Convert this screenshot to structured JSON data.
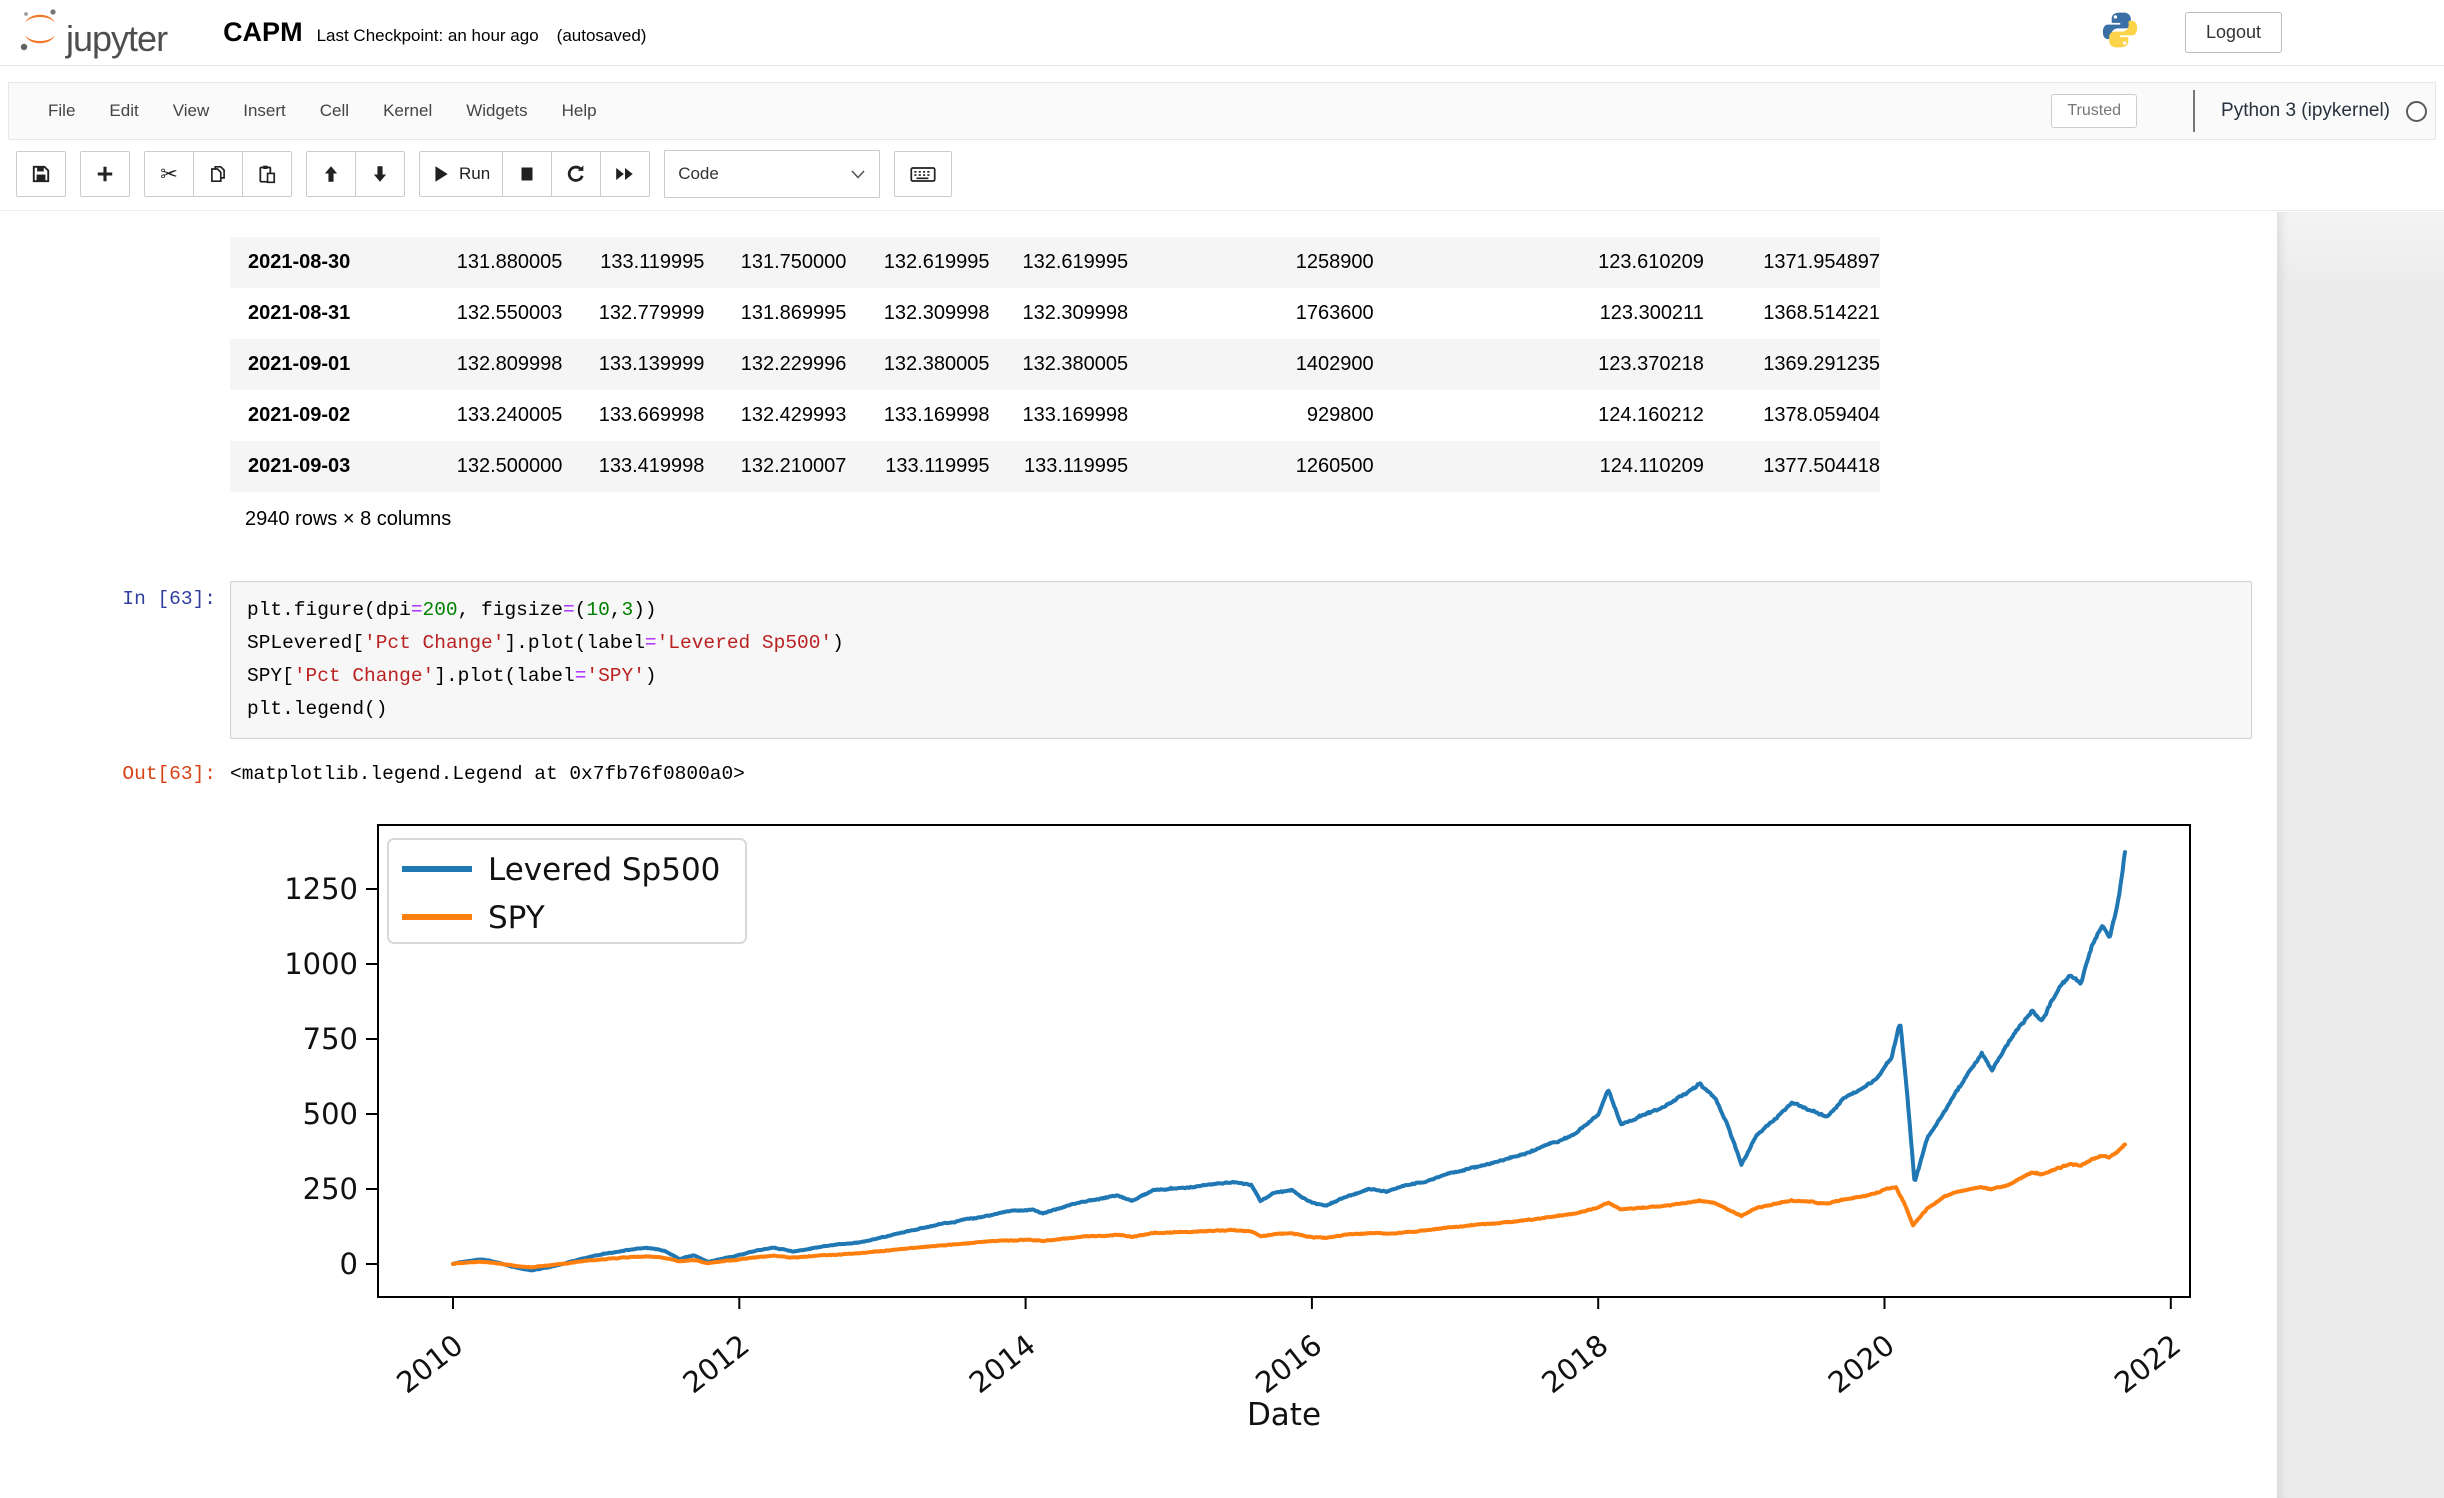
{
  "header": {
    "logo_text": "jupyter",
    "title": "CAPM",
    "subtitle": "Last Checkpoint: an hour ago",
    "autosaved": "(autosaved)",
    "logout_label": "Logout"
  },
  "menubar": {
    "items": [
      "File",
      "Edit",
      "View",
      "Insert",
      "Cell",
      "Kernel",
      "Widgets",
      "Help"
    ],
    "trusted_label": "Trusted",
    "kernel_name": "Python 3 (ipykernel)",
    "kernel_status": "idle"
  },
  "toolbar": {
    "run_label": "Run",
    "cell_type": "Code"
  },
  "dataframe": {
    "rows": [
      [
        "2021-08-30",
        "131.880005",
        "133.119995",
        "131.750000",
        "132.619995",
        "132.619995",
        "1258900",
        "123.610209",
        "1371.954897"
      ],
      [
        "2021-08-31",
        "132.550003",
        "132.779999",
        "131.869995",
        "132.309998",
        "132.309998",
        "1763600",
        "123.300211",
        "1368.514221"
      ],
      [
        "2021-09-01",
        "132.809998",
        "133.139999",
        "132.229996",
        "132.380005",
        "132.380005",
        "1402900",
        "123.370218",
        "1369.291235"
      ],
      [
        "2021-09-02",
        "133.240005",
        "133.669998",
        "132.429993",
        "133.169998",
        "133.169998",
        "929800",
        "124.160212",
        "1378.059404"
      ],
      [
        "2021-09-03",
        "132.500000",
        "133.419998",
        "132.210007",
        "133.119995",
        "133.119995",
        "1260500",
        "124.110209",
        "1377.504418"
      ]
    ],
    "footer": "2940 rows × 8 columns"
  },
  "cell": {
    "in_prompt": "In [63]:",
    "out_prompt": "Out[63]:",
    "out_text": "<matplotlib.legend.Legend at 0x7fb76f0800a0>",
    "code_lines": [
      [
        [
          "plt.figure(dpi",
          "p"
        ],
        [
          "=",
          "o"
        ],
        [
          "200",
          "n"
        ],
        [
          ", figsize",
          "p"
        ],
        [
          "=",
          "o"
        ],
        [
          "(",
          "p"
        ],
        [
          "10",
          "n"
        ],
        [
          ",",
          "p"
        ],
        [
          "3",
          "n"
        ],
        [
          "))",
          "p"
        ]
      ],
      [
        [
          "SPLevered[",
          "p"
        ],
        [
          "'Pct Change'",
          "s"
        ],
        [
          "].plot(label",
          "p"
        ],
        [
          "=",
          "o"
        ],
        [
          "'Levered Sp500'",
          "s"
        ],
        [
          ")",
          "p"
        ]
      ],
      [
        [
          "SPY[",
          "p"
        ],
        [
          "'Pct Change'",
          "s"
        ],
        [
          "].plot(label",
          "p"
        ],
        [
          "=",
          "o"
        ],
        [
          "'SPY'",
          "s"
        ],
        [
          ")",
          "p"
        ]
      ],
      [
        [
          "plt.legend()",
          "p"
        ]
      ]
    ]
  },
  "chart_data": {
    "type": "line",
    "xlabel": "Date",
    "ylabel": "",
    "x_ticks": [
      2010,
      2012,
      2014,
      2016,
      2018,
      2020,
      2022
    ],
    "y_ticks": [
      0,
      250,
      500,
      750,
      1000,
      1250
    ],
    "xlim": [
      2009.48,
      2022.13
    ],
    "ylim": [
      -63,
      1463
    ],
    "grid": false,
    "legend_position": "upper left",
    "series": [
      {
        "name": "Levered Sp500",
        "color": "#1f77b4",
        "points": [
          [
            2010.0,
            0
          ],
          [
            2010.1,
            10
          ],
          [
            2010.2,
            16
          ],
          [
            2010.3,
            6
          ],
          [
            2010.42,
            -10
          ],
          [
            2010.55,
            -22
          ],
          [
            2010.65,
            -12
          ],
          [
            2010.8,
            4
          ],
          [
            2010.92,
            20
          ],
          [
            2011.05,
            34
          ],
          [
            2011.2,
            46
          ],
          [
            2011.35,
            54
          ],
          [
            2011.48,
            44
          ],
          [
            2011.58,
            16
          ],
          [
            2011.68,
            28
          ],
          [
            2011.78,
            6
          ],
          [
            2011.9,
            20
          ],
          [
            2012.0,
            30
          ],
          [
            2012.12,
            44
          ],
          [
            2012.25,
            54
          ],
          [
            2012.38,
            42
          ],
          [
            2012.55,
            56
          ],
          [
            2012.7,
            66
          ],
          [
            2012.85,
            72
          ],
          [
            2013.0,
            88
          ],
          [
            2013.15,
            106
          ],
          [
            2013.3,
            122
          ],
          [
            2013.45,
            138
          ],
          [
            2013.6,
            150
          ],
          [
            2013.75,
            162
          ],
          [
            2013.9,
            176
          ],
          [
            2014.05,
            180
          ],
          [
            2014.12,
            168
          ],
          [
            2014.3,
            196
          ],
          [
            2014.5,
            216
          ],
          [
            2014.64,
            230
          ],
          [
            2014.74,
            210
          ],
          [
            2014.9,
            246
          ],
          [
            2015.05,
            252
          ],
          [
            2015.25,
            264
          ],
          [
            2015.45,
            272
          ],
          [
            2015.58,
            262
          ],
          [
            2015.64,
            208
          ],
          [
            2015.74,
            236
          ],
          [
            2015.86,
            246
          ],
          [
            2015.97,
            210
          ],
          [
            2016.1,
            194
          ],
          [
            2016.25,
            228
          ],
          [
            2016.4,
            250
          ],
          [
            2016.52,
            240
          ],
          [
            2016.65,
            262
          ],
          [
            2016.8,
            276
          ],
          [
            2016.95,
            300
          ],
          [
            2017.1,
            318
          ],
          [
            2017.3,
            342
          ],
          [
            2017.5,
            368
          ],
          [
            2017.7,
            404
          ],
          [
            2017.85,
            438
          ],
          [
            2018.0,
            500
          ],
          [
            2018.07,
            580
          ],
          [
            2018.16,
            465
          ],
          [
            2018.3,
            492
          ],
          [
            2018.45,
            522
          ],
          [
            2018.6,
            562
          ],
          [
            2018.71,
            602
          ],
          [
            2018.82,
            552
          ],
          [
            2018.9,
            470
          ],
          [
            2019.0,
            330
          ],
          [
            2019.1,
            428
          ],
          [
            2019.22,
            480
          ],
          [
            2019.35,
            540
          ],
          [
            2019.45,
            516
          ],
          [
            2019.6,
            492
          ],
          [
            2019.72,
            552
          ],
          [
            2019.85,
            588
          ],
          [
            2019.95,
            622
          ],
          [
            2020.05,
            690
          ],
          [
            2020.11,
            806
          ],
          [
            2020.16,
            560
          ],
          [
            2020.21,
            268
          ],
          [
            2020.3,
            420
          ],
          [
            2020.42,
            510
          ],
          [
            2020.52,
            590
          ],
          [
            2020.62,
            660
          ],
          [
            2020.68,
            702
          ],
          [
            2020.75,
            642
          ],
          [
            2020.85,
            726
          ],
          [
            2020.95,
            796
          ],
          [
            2021.03,
            846
          ],
          [
            2021.1,
            812
          ],
          [
            2021.2,
            906
          ],
          [
            2021.3,
            964
          ],
          [
            2021.37,
            932
          ],
          [
            2021.45,
            1062
          ],
          [
            2021.52,
            1128
          ],
          [
            2021.57,
            1082
          ],
          [
            2021.62,
            1180
          ],
          [
            2021.66,
            1296
          ],
          [
            2021.68,
            1372
          ]
        ]
      },
      {
        "name": "SPY",
        "color": "#ff7f0e",
        "points": [
          [
            2010.0,
            0
          ],
          [
            2010.1,
            5
          ],
          [
            2010.2,
            8
          ],
          [
            2010.3,
            3
          ],
          [
            2010.42,
            -5
          ],
          [
            2010.55,
            -12
          ],
          [
            2010.65,
            -6
          ],
          [
            2010.8,
            2
          ],
          [
            2010.92,
            10
          ],
          [
            2011.05,
            16
          ],
          [
            2011.2,
            22
          ],
          [
            2011.35,
            26
          ],
          [
            2011.48,
            21
          ],
          [
            2011.58,
            8
          ],
          [
            2011.68,
            14
          ],
          [
            2011.78,
            3
          ],
          [
            2011.9,
            10
          ],
          [
            2012.0,
            15
          ],
          [
            2012.12,
            22
          ],
          [
            2012.25,
            27
          ],
          [
            2012.38,
            21
          ],
          [
            2012.55,
            28
          ],
          [
            2012.7,
            33
          ],
          [
            2012.85,
            36
          ],
          [
            2013.0,
            43
          ],
          [
            2013.15,
            51
          ],
          [
            2013.3,
            58
          ],
          [
            2013.45,
            64
          ],
          [
            2013.6,
            69
          ],
          [
            2013.75,
            74
          ],
          [
            2013.9,
            79
          ],
          [
            2014.05,
            81
          ],
          [
            2014.12,
            77
          ],
          [
            2014.3,
            87
          ],
          [
            2014.5,
            94
          ],
          [
            2014.64,
            99
          ],
          [
            2014.74,
            92
          ],
          [
            2014.9,
            104
          ],
          [
            2015.05,
            106
          ],
          [
            2015.25,
            110
          ],
          [
            2015.45,
            112
          ],
          [
            2015.58,
            108
          ],
          [
            2015.64,
            91
          ],
          [
            2015.74,
            100
          ],
          [
            2015.86,
            103
          ],
          [
            2015.97,
            91
          ],
          [
            2016.1,
            86
          ],
          [
            2016.25,
            97
          ],
          [
            2016.4,
            104
          ],
          [
            2016.52,
            100
          ],
          [
            2016.65,
            107
          ],
          [
            2016.8,
            112
          ],
          [
            2016.95,
            121
          ],
          [
            2017.1,
            128
          ],
          [
            2017.3,
            137
          ],
          [
            2017.5,
            147
          ],
          [
            2017.7,
            159
          ],
          [
            2017.85,
            170
          ],
          [
            2018.0,
            190
          ],
          [
            2018.07,
            205
          ],
          [
            2018.16,
            180
          ],
          [
            2018.3,
            187
          ],
          [
            2018.45,
            194
          ],
          [
            2018.6,
            203
          ],
          [
            2018.71,
            211
          ],
          [
            2018.82,
            200
          ],
          [
            2018.9,
            182
          ],
          [
            2019.0,
            160
          ],
          [
            2019.1,
            185
          ],
          [
            2019.22,
            199
          ],
          [
            2019.35,
            213
          ],
          [
            2019.45,
            207
          ],
          [
            2019.6,
            200
          ],
          [
            2019.72,
            216
          ],
          [
            2019.85,
            226
          ],
          [
            2019.95,
            237
          ],
          [
            2020.0,
            250
          ],
          [
            2020.08,
            255
          ],
          [
            2020.14,
            200
          ],
          [
            2020.2,
            127
          ],
          [
            2020.3,
            185
          ],
          [
            2020.42,
            225
          ],
          [
            2020.52,
            243
          ],
          [
            2020.62,
            252
          ],
          [
            2020.68,
            258
          ],
          [
            2020.75,
            250
          ],
          [
            2020.85,
            262
          ],
          [
            2020.95,
            288
          ],
          [
            2021.03,
            305
          ],
          [
            2021.1,
            298
          ],
          [
            2021.2,
            318
          ],
          [
            2021.3,
            332
          ],
          [
            2021.37,
            326
          ],
          [
            2021.45,
            348
          ],
          [
            2021.52,
            360
          ],
          [
            2021.57,
            354
          ],
          [
            2021.62,
            372
          ],
          [
            2021.66,
            390
          ],
          [
            2021.68,
            400
          ]
        ]
      }
    ]
  }
}
